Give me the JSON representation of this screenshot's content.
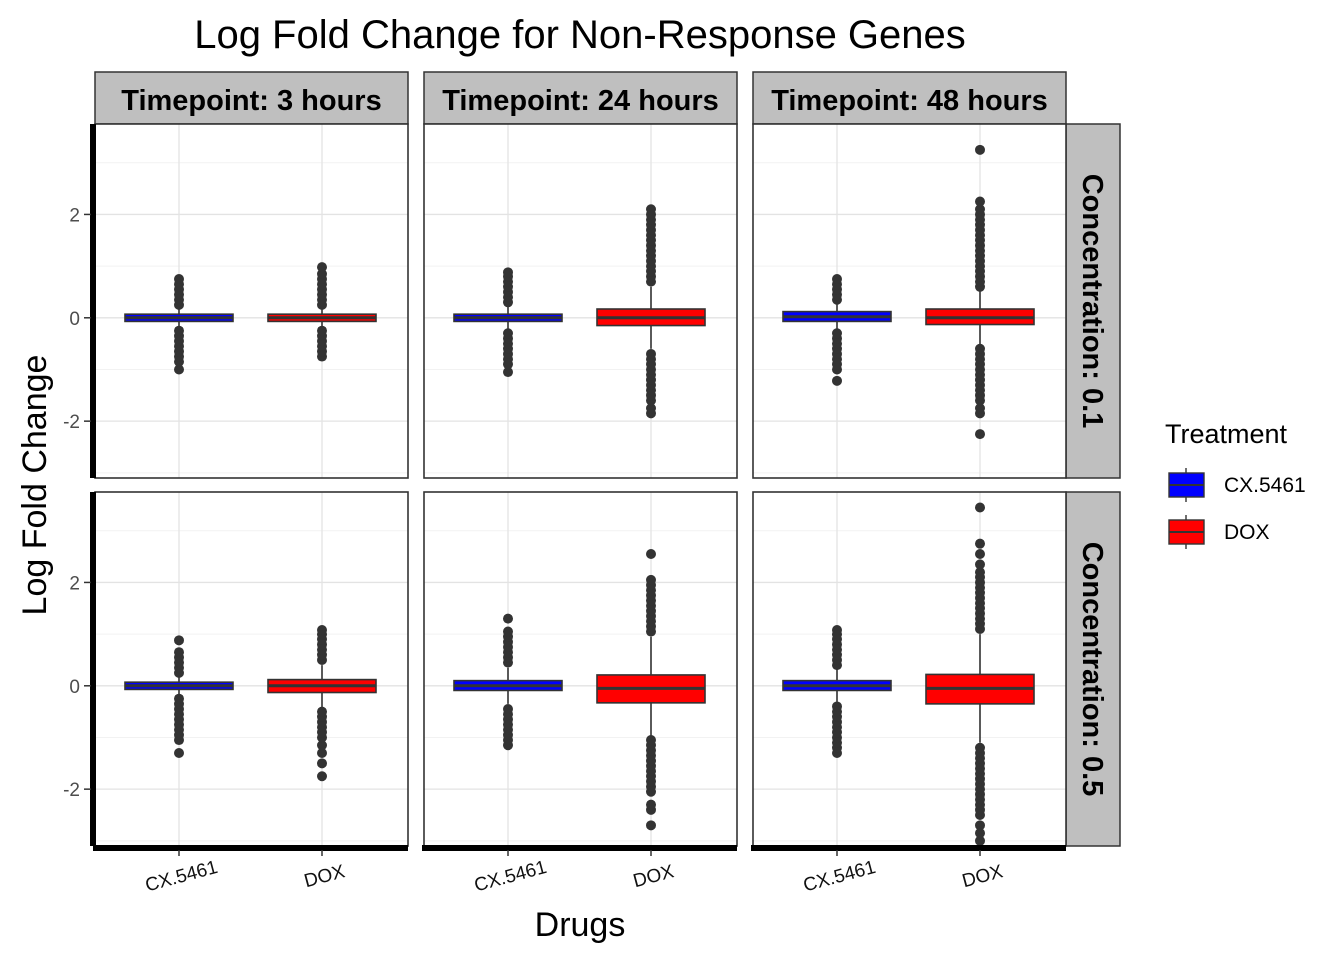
{
  "chart_data": {
    "type": "box",
    "title": "Log Fold Change for Non-Response Genes",
    "xlabel": "Drugs",
    "ylabel": "Log Fold Change",
    "categories": [
      "CX.5461",
      "DOX"
    ],
    "ylim": [
      -3.1,
      3.75
    ],
    "yticks": [
      -2,
      0,
      2
    ],
    "grid": true,
    "facet_cols": [
      "Timepoint: 3 hours",
      "Timepoint: 24 hours",
      "Timepoint: 48 hours"
    ],
    "facet_rows": [
      "Concentration: 0.1",
      "Concentration: 0.5"
    ],
    "legend": {
      "title": "Treatment",
      "position": "right",
      "items": [
        {
          "label": "CX.5461",
          "color": "#0000ff"
        },
        {
          "label": "DOX",
          "color": "#ff0000"
        }
      ]
    },
    "panels": [
      {
        "row": 0,
        "col": 0,
        "boxes": [
          {
            "category": "CX.5461",
            "treatment": "CX.5461",
            "q1": -0.07,
            "median": 0.0,
            "q3": 0.07,
            "whisker_low": -0.2,
            "whisker_high": 0.2,
            "outliers": [
              -1.0,
              -0.85,
              -0.75,
              -0.65,
              -0.55,
              -0.45,
              -0.35,
              -0.25,
              0.25,
              0.35,
              0.45,
              0.55,
              0.65,
              0.75
            ]
          },
          {
            "category": "DOX",
            "treatment": "DOX",
            "q1": -0.07,
            "median": 0.0,
            "q3": 0.07,
            "whisker_low": -0.2,
            "whisker_high": 0.2,
            "outliers": [
              -0.75,
              -0.65,
              -0.55,
              -0.45,
              -0.35,
              -0.25,
              0.25,
              0.35,
              0.45,
              0.55,
              0.65,
              0.75,
              0.85,
              0.98
            ]
          }
        ]
      },
      {
        "row": 0,
        "col": 1,
        "boxes": [
          {
            "category": "CX.5461",
            "treatment": "CX.5461",
            "q1": -0.07,
            "median": 0.0,
            "q3": 0.07,
            "whisker_low": -0.25,
            "whisker_high": 0.25,
            "outliers": [
              -1.05,
              -0.9,
              -0.8,
              -0.7,
              -0.6,
              -0.5,
              -0.4,
              -0.3,
              0.3,
              0.4,
              0.5,
              0.6,
              0.7,
              0.8,
              0.88
            ]
          },
          {
            "category": "DOX",
            "treatment": "DOX",
            "q1": -0.15,
            "median": 0.0,
            "q3": 0.17,
            "whisker_low": -0.6,
            "whisker_high": 0.6,
            "outliers": [
              -1.85,
              -1.75,
              -1.6,
              -1.5,
              -1.4,
              -1.3,
              -1.2,
              -1.1,
              -1.0,
              -0.9,
              -0.8,
              -0.7,
              0.7,
              0.8,
              0.9,
              1.0,
              1.1,
              1.2,
              1.3,
              1.4,
              1.5,
              1.6,
              1.7,
              1.8,
              1.9,
              2.0,
              2.1
            ]
          }
        ]
      },
      {
        "row": 0,
        "col": 2,
        "boxes": [
          {
            "category": "CX.5461",
            "treatment": "CX.5461",
            "q1": -0.07,
            "median": 0.02,
            "q3": 0.12,
            "whisker_low": -0.25,
            "whisker_high": 0.3,
            "outliers": [
              -1.22,
              -1.0,
              -0.9,
              -0.8,
              -0.7,
              -0.6,
              -0.5,
              -0.4,
              -0.3,
              0.35,
              0.45,
              0.55,
              0.65,
              0.75
            ]
          },
          {
            "category": "DOX",
            "treatment": "DOX",
            "q1": -0.13,
            "median": 0.0,
            "q3": 0.17,
            "whisker_low": -0.55,
            "whisker_high": 0.55,
            "outliers": [
              -2.25,
              -1.85,
              -1.75,
              -1.6,
              -1.5,
              -1.4,
              -1.3,
              -1.2,
              -1.1,
              -1.0,
              -0.9,
              -0.8,
              -0.7,
              -0.6,
              0.6,
              0.7,
              0.8,
              0.9,
              1.0,
              1.1,
              1.2,
              1.3,
              1.4,
              1.5,
              1.6,
              1.7,
              1.8,
              1.9,
              2.0,
              2.1,
              2.25,
              3.25
            ]
          }
        ]
      },
      {
        "row": 1,
        "col": 0,
        "boxes": [
          {
            "category": "CX.5461",
            "treatment": "CX.5461",
            "q1": -0.07,
            "median": 0.0,
            "q3": 0.07,
            "whisker_low": -0.2,
            "whisker_high": 0.2,
            "outliers": [
              -1.3,
              -1.05,
              -0.95,
              -0.85,
              -0.75,
              -0.65,
              -0.55,
              -0.45,
              -0.35,
              -0.25,
              0.25,
              0.35,
              0.45,
              0.55,
              0.65,
              0.88
            ]
          },
          {
            "category": "DOX",
            "treatment": "DOX",
            "q1": -0.13,
            "median": 0.0,
            "q3": 0.12,
            "whisker_low": -0.45,
            "whisker_high": 0.4,
            "outliers": [
              -1.75,
              -1.5,
              -1.3,
              -1.15,
              -1.0,
              -0.9,
              -0.8,
              -0.7,
              -0.6,
              -0.5,
              0.5,
              0.6,
              0.7,
              0.8,
              0.9,
              1.0,
              1.08
            ]
          }
        ]
      },
      {
        "row": 1,
        "col": 1,
        "boxes": [
          {
            "category": "CX.5461",
            "treatment": "CX.5461",
            "q1": -0.09,
            "median": 0.0,
            "q3": 0.1,
            "whisker_low": -0.35,
            "whisker_high": 0.35,
            "outliers": [
              -1.15,
              -1.05,
              -0.95,
              -0.85,
              -0.75,
              -0.65,
              -0.55,
              -0.45,
              0.45,
              0.55,
              0.65,
              0.75,
              0.85,
              0.95,
              1.05,
              1.3
            ]
          },
          {
            "category": "DOX",
            "treatment": "DOX",
            "q1": -0.33,
            "median": -0.05,
            "q3": 0.21,
            "whisker_low": -1.0,
            "whisker_high": 0.95,
            "outliers": [
              -2.7,
              -2.4,
              -2.3,
              -2.05,
              -1.95,
              -1.85,
              -1.75,
              -1.65,
              -1.55,
              -1.45,
              -1.35,
              -1.25,
              -1.15,
              -1.05,
              1.05,
              1.15,
              1.25,
              1.35,
              1.45,
              1.55,
              1.65,
              1.75,
              1.85,
              1.95,
              2.05,
              2.55
            ]
          }
        ]
      },
      {
        "row": 1,
        "col": 2,
        "boxes": [
          {
            "category": "CX.5461",
            "treatment": "CX.5461",
            "q1": -0.09,
            "median": 0.0,
            "q3": 0.1,
            "whisker_low": -0.35,
            "whisker_high": 0.35,
            "outliers": [
              -1.3,
              -1.2,
              -1.1,
              -1.0,
              -0.9,
              -0.8,
              -0.7,
              -0.6,
              -0.5,
              -0.4,
              0.4,
              0.5,
              0.6,
              0.7,
              0.8,
              0.9,
              1.0,
              1.08
            ]
          },
          {
            "category": "DOX",
            "treatment": "DOX",
            "q1": -0.35,
            "median": -0.05,
            "q3": 0.22,
            "whisker_low": -1.1,
            "whisker_high": 1.0,
            "outliers": [
              -3.0,
              -2.85,
              -2.7,
              -2.5,
              -2.4,
              -2.3,
              -2.2,
              -2.1,
              -2.0,
              -1.9,
              -1.8,
              -1.7,
              -1.6,
              -1.5,
              -1.4,
              -1.3,
              -1.2,
              1.1,
              1.2,
              1.3,
              1.4,
              1.5,
              1.6,
              1.7,
              1.8,
              1.9,
              2.0,
              2.1,
              2.2,
              2.35,
              2.55,
              2.75,
              3.45
            ]
          }
        ]
      }
    ]
  }
}
